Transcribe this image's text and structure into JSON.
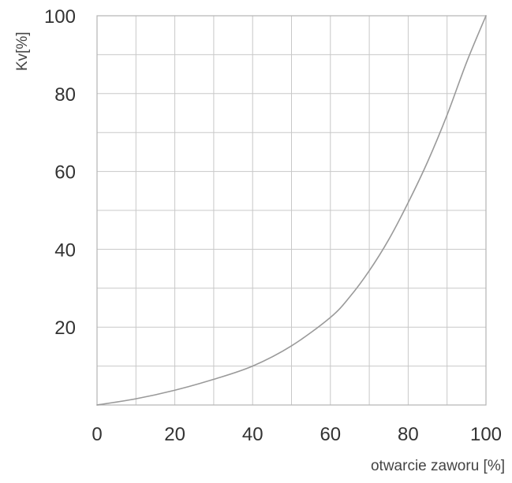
{
  "chart_data": {
    "type": "line",
    "title": "",
    "xlabel": "otwarcie zaworu [%]",
    "ylabel": "Kv[%]",
    "xlim": [
      0,
      100
    ],
    "ylim": [
      0,
      100
    ],
    "x_ticks": [
      0,
      20,
      40,
      60,
      80,
      100
    ],
    "y_ticks": [
      20,
      40,
      60,
      80,
      100
    ],
    "x_tick_labels": [
      "0",
      "20",
      "40",
      "60",
      "80",
      "100"
    ],
    "y_tick_labels": [
      "20",
      "40",
      "60",
      "80",
      "100"
    ],
    "grid": true,
    "grid_step": 10,
    "legend": "none",
    "line_color": "#9a9a9a",
    "grid_color": "#c8c8c8",
    "series": [
      {
        "x": [
          0,
          10,
          20,
          30,
          40,
          50,
          60,
          65,
          70,
          75,
          80,
          85,
          90,
          95,
          100
        ],
        "y": [
          0,
          1.6,
          3.8,
          6.6,
          10,
          15.2,
          22.5,
          27.8,
          34.5,
          42.5,
          52,
          62.5,
          74.5,
          88,
          100
        ]
      }
    ]
  }
}
